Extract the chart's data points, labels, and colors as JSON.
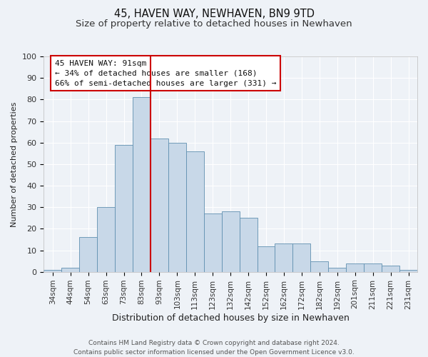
{
  "title": "45, HAVEN WAY, NEWHAVEN, BN9 9TD",
  "subtitle": "Size of property relative to detached houses in Newhaven",
  "xlabel": "Distribution of detached houses by size in Newhaven",
  "ylabel": "Number of detached properties",
  "bar_labels": [
    "34sqm",
    "44sqm",
    "54sqm",
    "63sqm",
    "73sqm",
    "83sqm",
    "93sqm",
    "103sqm",
    "113sqm",
    "123sqm",
    "132sqm",
    "142sqm",
    "152sqm",
    "162sqm",
    "172sqm",
    "182sqm",
    "192sqm",
    "201sqm",
    "211sqm",
    "221sqm",
    "231sqm"
  ],
  "bar_values": [
    1,
    2,
    16,
    30,
    59,
    81,
    62,
    60,
    56,
    27,
    28,
    25,
    12,
    13,
    13,
    5,
    2,
    4,
    4,
    3,
    1
  ],
  "bar_color": "#c8d8e8",
  "bar_edge_color": "#6090b0",
  "vline_color": "#cc0000",
  "annotation_title": "45 HAVEN WAY: 91sqm",
  "annotation_line1": "← 34% of detached houses are smaller (168)",
  "annotation_line2": "66% of semi-detached houses are larger (331) →",
  "annotation_box_facecolor": "#ffffff",
  "annotation_box_edgecolor": "#cc0000",
  "ylim": [
    0,
    100
  ],
  "yticks": [
    0,
    10,
    20,
    30,
    40,
    50,
    60,
    70,
    80,
    90,
    100
  ],
  "background_color": "#eef2f7",
  "grid_color": "#ffffff",
  "footer_line1": "Contains HM Land Registry data © Crown copyright and database right 2024.",
  "footer_line2": "Contains public sector information licensed under the Open Government Licence v3.0.",
  "title_fontsize": 10.5,
  "subtitle_fontsize": 9.5,
  "xlabel_fontsize": 9,
  "ylabel_fontsize": 8,
  "tick_fontsize": 7.5,
  "annotation_fontsize": 8,
  "footer_fontsize": 6.5
}
